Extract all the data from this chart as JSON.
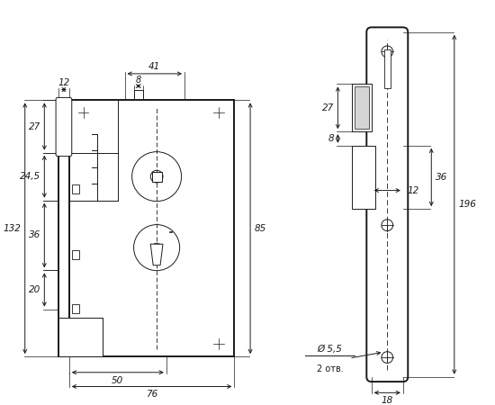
{
  "bg_color": "#ffffff",
  "lc": "#1a1a1a",
  "lw_main": 1.4,
  "lw_thin": 0.7,
  "lw_dim": 0.7,
  "fs": 7.5,
  "fig_w": 5.5,
  "fig_h": 4.5,
  "dpi": 100
}
